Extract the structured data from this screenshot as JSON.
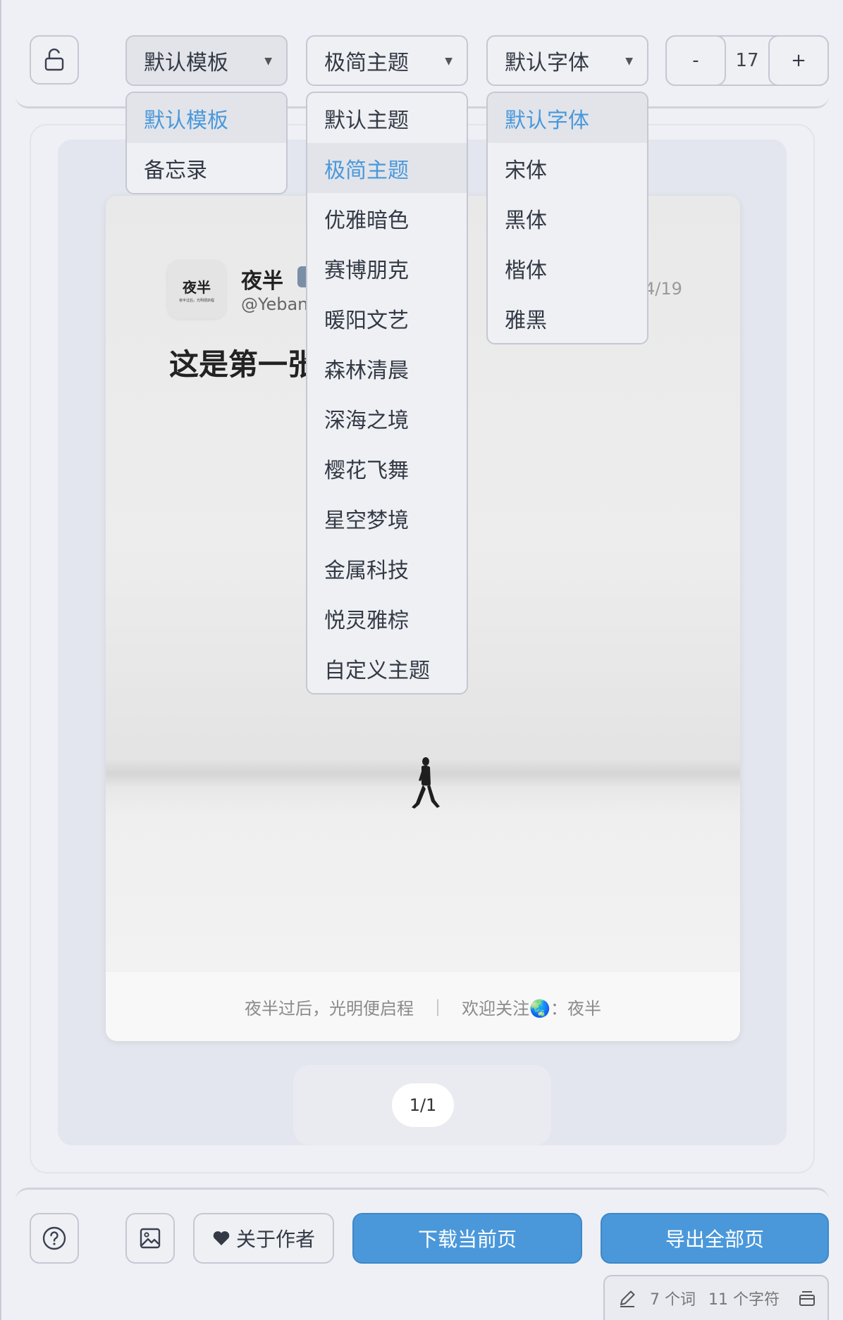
{
  "toolbar": {
    "template_select": {
      "value": "默认模板",
      "options": [
        "默认模板",
        "备忘录"
      ]
    },
    "theme_select": {
      "value": "极简主题",
      "options": [
        "默认主题",
        "极简主题",
        "优雅暗色",
        "赛博朋克",
        "暖阳文艺",
        "森林清晨",
        "深海之境",
        "樱花飞舞",
        "星空梦境",
        "金属科技",
        "悦灵雅棕",
        "自定义主题"
      ]
    },
    "font_select": {
      "value": "默认字体",
      "options": [
        "默认字体",
        "宋体",
        "黑体",
        "楷体",
        "雅黑"
      ]
    },
    "font_size": {
      "minus": "-",
      "value": "17",
      "plus": "+"
    }
  },
  "card": {
    "avatar_text": "夜半",
    "avatar_subtext": "夜半过后，光明便启程",
    "author_name": "夜半",
    "handle": "@Yeban",
    "date": "4/19",
    "headline": "这是第一张",
    "footer_left": "夜半过后，光明便启程",
    "footer_sep": "|",
    "footer_right": "欢迎关注🌏：夜半"
  },
  "pager": "1/1",
  "bottom": {
    "about_label": "关于作者",
    "download_label": "下载当前页",
    "export_label": "导出全部页"
  },
  "status": {
    "words": "7 个词",
    "chars": "11 个字符"
  },
  "colors": {
    "accent": "#4a98da",
    "background": "#eef0f5"
  },
  "icons": [
    "unlock-icon",
    "caret-down-icon",
    "help-icon",
    "image-icon",
    "heart-icon",
    "pencil-icon",
    "menu-icon"
  ]
}
